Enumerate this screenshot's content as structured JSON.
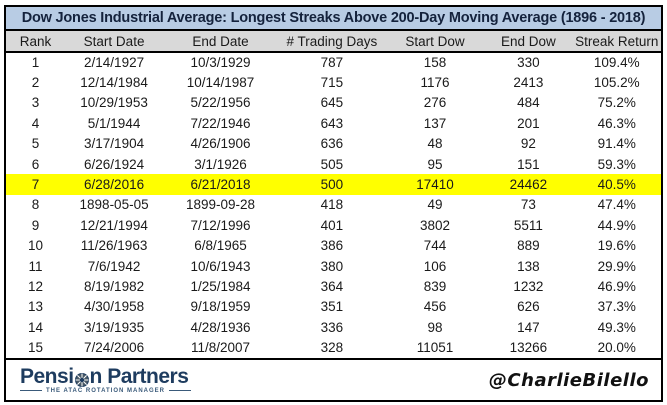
{
  "title": "Dow Jones Industrial Average: Longest Streaks Above 200-Day Moving Average (1896 - 2018)",
  "chart_data": {
    "type": "table",
    "title": "Dow Jones Industrial Average: Longest Streaks Above 200-Day Moving Average (1896 - 2018)",
    "columns": [
      "Rank",
      "Start Date",
      "End Date",
      "# Trading Days",
      "Start Dow",
      "End Dow",
      "Streak Return"
    ],
    "rows": [
      [
        "1",
        "2/14/1927",
        "10/3/1929",
        "787",
        "158",
        "330",
        "109.4%"
      ],
      [
        "2",
        "12/14/1984",
        "10/14/1987",
        "715",
        "1176",
        "2413",
        "105.2%"
      ],
      [
        "3",
        "10/29/1953",
        "5/22/1956",
        "645",
        "276",
        "484",
        "75.2%"
      ],
      [
        "4",
        "5/1/1944",
        "7/22/1946",
        "643",
        "137",
        "201",
        "46.3%"
      ],
      [
        "5",
        "3/17/1904",
        "4/26/1906",
        "636",
        "48",
        "92",
        "91.4%"
      ],
      [
        "6",
        "6/26/1924",
        "3/1/1926",
        "505",
        "95",
        "151",
        "59.3%"
      ],
      [
        "7",
        "6/28/2016",
        "6/21/2018",
        "500",
        "17410",
        "24462",
        "40.5%"
      ],
      [
        "8",
        "1898-05-05",
        "1899-09-28",
        "418",
        "49",
        "73",
        "47.4%"
      ],
      [
        "9",
        "12/21/1994",
        "7/12/1996",
        "401",
        "3802",
        "5511",
        "44.9%"
      ],
      [
        "10",
        "11/26/1963",
        "6/8/1965",
        "386",
        "744",
        "889",
        "19.6%"
      ],
      [
        "11",
        "7/6/1942",
        "10/6/1943",
        "380",
        "106",
        "138",
        "29.9%"
      ],
      [
        "12",
        "8/19/1982",
        "1/25/1984",
        "364",
        "839",
        "1232",
        "46.9%"
      ],
      [
        "13",
        "4/30/1958",
        "9/18/1959",
        "351",
        "456",
        "626",
        "37.3%"
      ],
      [
        "14",
        "3/19/1935",
        "4/28/1936",
        "336",
        "98",
        "147",
        "49.3%"
      ],
      [
        "15",
        "7/24/2006",
        "11/8/2007",
        "328",
        "11051",
        "13266",
        "20.0%"
      ]
    ],
    "highlighted_row_index": 6,
    "highlighted_rank": "7"
  },
  "footer": {
    "logo_text": "Pension Partners",
    "logo_text_before_icon": "Pensi",
    "logo_text_after_icon": "n Partners",
    "logo_tagline": "THE ATAC ROTATION MANAGER",
    "credit": "@CharlieBilello"
  },
  "colors": {
    "title_bg": "#b8cce4",
    "title_text": "#14223c",
    "header_bg": "#d9d9d9",
    "highlight_bg": "#ffff00",
    "border": "#000000",
    "logo_navy": "#1e3c5f"
  }
}
